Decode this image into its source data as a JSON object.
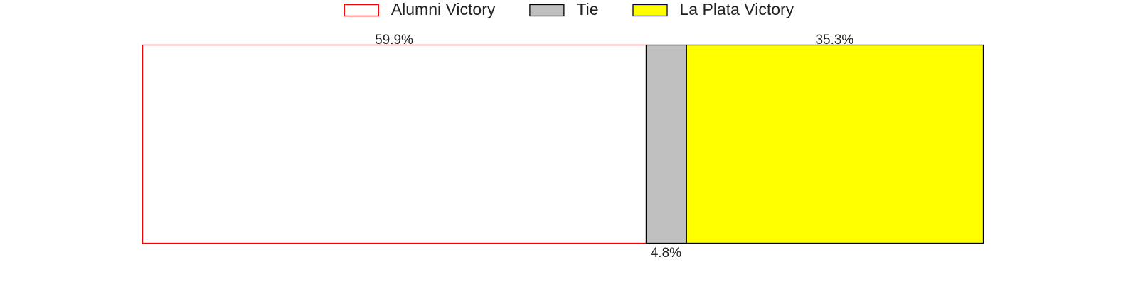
{
  "chart_data": {
    "type": "bar",
    "orientation": "horizontal",
    "stacked": true,
    "normalized": true,
    "xlim": [
      0,
      100
    ],
    "grid": false,
    "axes_visible": false,
    "legend_position": "top-center",
    "categories": [
      ""
    ],
    "series": [
      {
        "name": "Alumni Victory",
        "values": [
          59.9
        ],
        "label": "59.9%",
        "label_position": "above",
        "fill": "#ffffff",
        "stroke": "#ff0000"
      },
      {
        "name": "Tie",
        "values": [
          4.8
        ],
        "label": "4.8%",
        "label_position": "below",
        "fill": "#c0c0c0",
        "stroke": "#000000"
      },
      {
        "name": "La Plata Victory",
        "values": [
          35.3
        ],
        "label": "35.3%",
        "label_position": "above",
        "fill": "#ffff00",
        "stroke": "#000033"
      }
    ]
  }
}
